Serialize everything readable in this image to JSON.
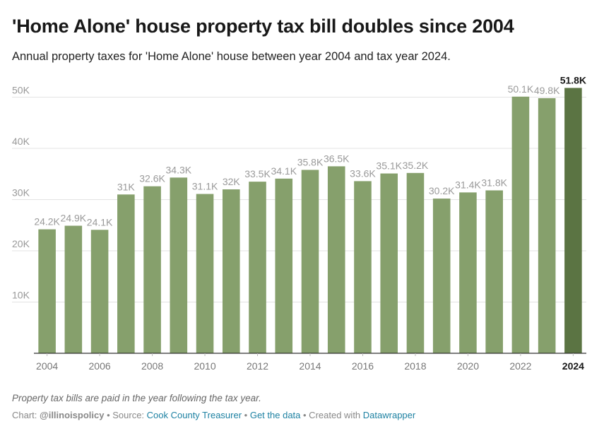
{
  "header": {
    "title": "'Home Alone' house property tax bill doubles since 2004",
    "subtitle": "Annual property taxes for 'Home Alone' house between year 2004 and tax year 2024."
  },
  "colors": {
    "bar": "#86a06c",
    "bar_highlight": "#5b7443",
    "label": "#9a9a9a",
    "label_highlight": "#181818",
    "grid": "#e3e3e3",
    "axis": "#333333"
  },
  "chart_data": {
    "type": "bar",
    "title": "'Home Alone' house property tax bill doubles since 2004",
    "xlabel": "",
    "ylabel": "",
    "ylim": [
      0,
      55000
    ],
    "yticks": [
      10000,
      20000,
      30000,
      40000,
      50000
    ],
    "ytick_labels": [
      "10K",
      "20K",
      "30K",
      "40K",
      "50K"
    ],
    "categories": [
      "2004",
      "2005",
      "2006",
      "2007",
      "2008",
      "2009",
      "2010",
      "2011",
      "2012",
      "2013",
      "2014",
      "2015",
      "2016",
      "2017",
      "2018",
      "2019",
      "2020",
      "2021",
      "2022",
      "2023",
      "2024"
    ],
    "values": [
      24200,
      24900,
      24100,
      31000,
      32600,
      34300,
      31100,
      32000,
      33500,
      34100,
      35800,
      36500,
      33600,
      35100,
      35200,
      30200,
      31400,
      31800,
      50100,
      49800,
      51800
    ],
    "value_labels": [
      "24.2K",
      "24.9K",
      "24.1K",
      "31K",
      "32.6K",
      "34.3K",
      "31.1K",
      "32K",
      "33.5K",
      "34.1K",
      "35.8K",
      "36.5K",
      "33.6K",
      "35.1K",
      "35.2K",
      "30.2K",
      "31.4K",
      "31.8K",
      "50.1K",
      "49.8K",
      "51.8K"
    ],
    "xtick_labels": [
      "2004",
      "2006",
      "2008",
      "2010",
      "2012",
      "2014",
      "2016",
      "2018",
      "2020",
      "2022",
      "2024"
    ],
    "highlight": "2024"
  },
  "footer": {
    "notes": "Property tax bills are paid in the year following the tax year.",
    "chart_prefix": "Chart:",
    "chart_author": "@illinoispolicy",
    "sep1": " • Source: ",
    "source": "Cook County Treasurer",
    "sep2": " • ",
    "get_data": "Get the data",
    "sep3": " • Created with ",
    "tool": "Datawrapper"
  }
}
